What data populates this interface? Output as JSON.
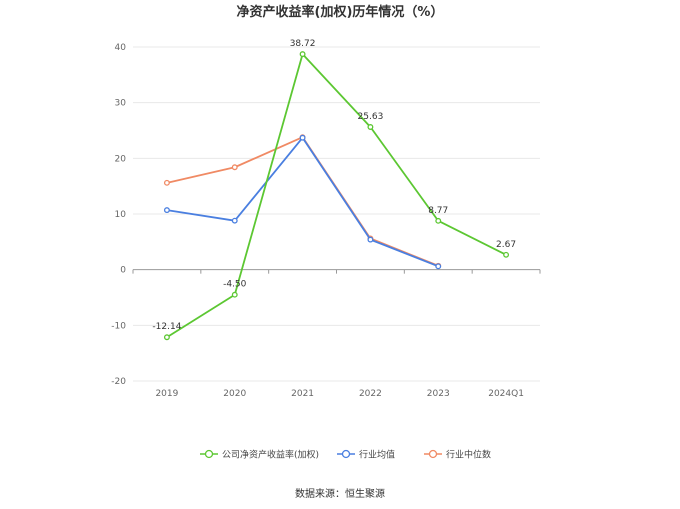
{
  "chart_data": {
    "type": "line",
    "title": "净资产收益率(加权)历年情况（%）",
    "categories": [
      "2019",
      "2020",
      "2021",
      "2022",
      "2023",
      "2024Q1"
    ],
    "ylim": [
      -20,
      40
    ],
    "yticks": [
      -20,
      -10,
      0,
      10,
      20,
      30,
      40
    ],
    "grid": true,
    "legend_position": "bottom",
    "series": [
      {
        "name": "公司净资产收益率(加权)",
        "color": "#5cc732",
        "values": [
          -12.14,
          -4.5,
          38.72,
          25.63,
          8.77,
          2.67
        ],
        "labels": [
          "-12.14",
          "-4.50",
          "38.72",
          "25.63",
          "8.77",
          "2.67"
        ]
      },
      {
        "name": "行业均值",
        "color": "#4a7fe0",
        "values": [
          10.7,
          8.8,
          23.7,
          5.4,
          0.6,
          null
        ]
      },
      {
        "name": "行业中位数",
        "color": "#f08a64",
        "values": [
          15.6,
          18.4,
          23.8,
          5.6,
          0.7,
          null
        ]
      }
    ]
  },
  "source": "数据来源：恒生聚源"
}
